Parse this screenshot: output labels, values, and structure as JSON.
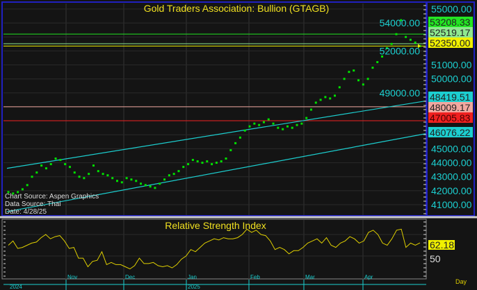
{
  "chart_data": [
    {
      "type": "scatter",
      "title": "Gold Traders Association: Bullion (GTAGB)",
      "annotations": [
        "Chart Source: Aspen Graphics",
        "Data Source: Thai",
        "Date: 4/28/25"
      ],
      "ylim": [
        40500,
        55400
      ],
      "y_ticks": [
        "55000.00",
        "54000.00",
        "52000.00",
        "51000.00",
        "50000.00",
        "49000.00",
        "45000.00",
        "44000.00",
        "43000.00",
        "42000.00",
        "41000.00"
      ],
      "date_range": [
        "2024-10-01",
        "2025-04-28"
      ],
      "values": [
        41900,
        41800,
        41900,
        42100,
        42400,
        43000,
        43300,
        43800,
        43600,
        43900,
        44300,
        44200,
        43900,
        43700,
        43300,
        43000,
        42900,
        43200,
        43800,
        43400,
        43200,
        43100,
        42900,
        42700,
        42600,
        42900,
        42800,
        42700,
        42500,
        42400,
        42300,
        42200,
        42500,
        42800,
        43100,
        43200,
        43400,
        43700,
        43900,
        44200,
        44100,
        44000,
        44100,
        43900,
        44000,
        44100,
        44300,
        44900,
        45400,
        45800,
        46300,
        46600,
        46800,
        46700,
        46900,
        47100,
        46800,
        46500,
        46400,
        46600,
        46500,
        46700,
        46800,
        47200,
        47800,
        48300,
        48500,
        48700,
        48600,
        48800,
        49400,
        50000,
        50500,
        50600,
        49900,
        49600,
        50000,
        50800,
        51200,
        51600,
        52200,
        52500,
        53200,
        54200,
        53000,
        52800,
        52600,
        52350
      ],
      "levels": [
        {
          "value": 53208.33,
          "label": "53208.33",
          "color": "#22e622"
        },
        {
          "value": 52519.17,
          "label": "52519.17",
          "color": "#8fe88f"
        },
        {
          "value": 52350.0,
          "label": "52350.00",
          "color": "#f0f000"
        },
        {
          "value": 48009.17,
          "label": "48009.17",
          "color": "#f0a8a0"
        },
        {
          "value": 47005.83,
          "label": "47005.83",
          "color": "#f02020"
        }
      ],
      "trendlines": [
        {
          "start": 43600,
          "end": 48419.51,
          "label": "48419.51",
          "color": "#1ccfd0"
        },
        {
          "start": 40500,
          "end": 46076.22,
          "label": "46076.22",
          "color": "#1ccfd0"
        }
      ],
      "point_color": "#00e000"
    },
    {
      "type": "line",
      "title": "Relative Strength Index",
      "last_value": "62.18",
      "y_tick": "50",
      "color": "#e0d000",
      "values": [
        60,
        64,
        57,
        58,
        60,
        62,
        63,
        67,
        70,
        66,
        68,
        69,
        64,
        57,
        58,
        48,
        48,
        40,
        45,
        46,
        54,
        42,
        44,
        42,
        42,
        40,
        38,
        41,
        48,
        43,
        43,
        44,
        41,
        40,
        41,
        39,
        42,
        47,
        50,
        56,
        54,
        58,
        62,
        64,
        66,
        65,
        67,
        66,
        66,
        67,
        70,
        75,
        72,
        74,
        70,
        69,
        64,
        56,
        58,
        56,
        52,
        55,
        55,
        58,
        62,
        64,
        66,
        62,
        67,
        60,
        58,
        62,
        64,
        68,
        66,
        62,
        64,
        72,
        74,
        70,
        62,
        60,
        66,
        74,
        75,
        58,
        62,
        60,
        62.18
      ]
    }
  ],
  "x_axis": {
    "months": [
      "Nov",
      "Dec",
      "Jan",
      "Feb",
      "Mar",
      "Apr"
    ],
    "years": [
      "2024",
      "2025"
    ],
    "period": "Day"
  }
}
